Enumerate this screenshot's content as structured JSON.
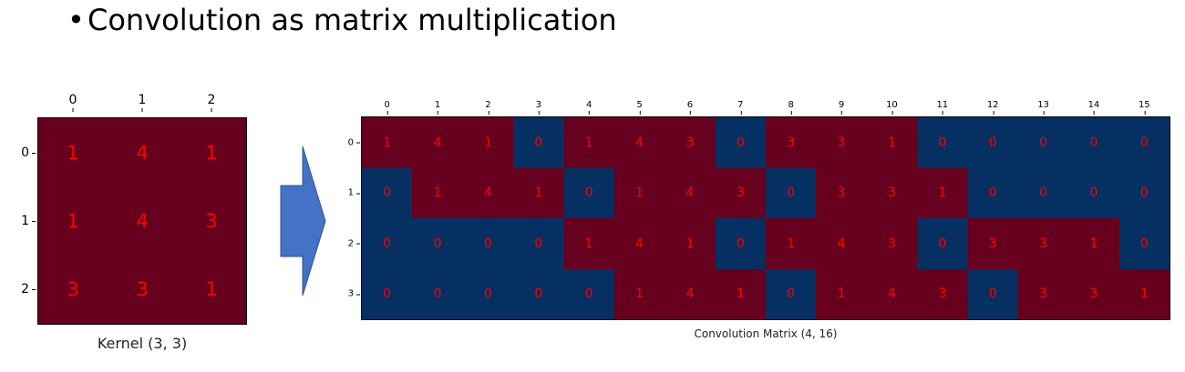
{
  "title": {
    "bullet": "•",
    "text": "Convolution as matrix multiplication"
  },
  "colors": {
    "high": "#67001f",
    "low": "#053061",
    "value_text": "#ff0000",
    "arrow_fill": "#4472c4"
  },
  "kernel": {
    "caption": "Kernel (3, 3)",
    "col_labels": [
      "0",
      "1",
      "2"
    ],
    "row_labels": [
      "0",
      "1",
      "2"
    ],
    "values": [
      [
        1,
        4,
        1
      ],
      [
        1,
        4,
        3
      ],
      [
        3,
        3,
        1
      ]
    ]
  },
  "arrow_icon": "right-arrow-icon",
  "conv_matrix": {
    "caption": "Convolution Matrix (4, 16)",
    "col_labels": [
      "0",
      "1",
      "2",
      "3",
      "4",
      "5",
      "6",
      "7",
      "8",
      "9",
      "10",
      "11",
      "12",
      "13",
      "14",
      "15"
    ],
    "row_labels": [
      "0",
      "1",
      "2",
      "3"
    ],
    "values": [
      [
        1,
        4,
        1,
        0,
        1,
        4,
        3,
        0,
        3,
        3,
        1,
        0,
        0,
        0,
        0,
        0
      ],
      [
        0,
        1,
        4,
        1,
        0,
        1,
        4,
        3,
        0,
        3,
        3,
        1,
        0,
        0,
        0,
        0
      ],
      [
        0,
        0,
        0,
        0,
        1,
        4,
        1,
        0,
        1,
        4,
        3,
        0,
        3,
        3,
        1,
        0
      ],
      [
        0,
        0,
        0,
        0,
        0,
        1,
        4,
        1,
        0,
        1,
        4,
        3,
        0,
        3,
        3,
        1
      ]
    ]
  }
}
